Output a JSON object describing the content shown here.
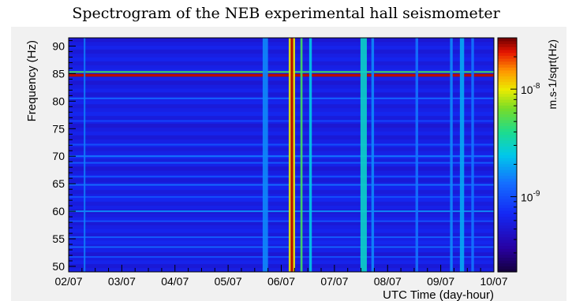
{
  "title": "Spectrogram of the NEB experimental hall seismometer",
  "chart_data": {
    "type": "heatmap",
    "title": "Spectrogram of the NEB experimental hall seismometer",
    "xlabel": "UTC Time (day-hour)",
    "ylabel": "Frequency (Hz)",
    "colorbar_label": "m.s-1/sqrt(Hz)",
    "x_ticks": [
      "02/07",
      "03/07",
      "04/07",
      "05/07",
      "06/07",
      "07/07",
      "08/07",
      "09/07",
      "10/07"
    ],
    "xlim_days": [
      2,
      10
    ],
    "y_ticks": [
      50,
      55,
      60,
      65,
      70,
      75,
      80,
      85,
      90
    ],
    "ylim": [
      49,
      91.5
    ],
    "colorbar_ticks": [
      {
        "base": "10",
        "exp": "-8",
        "value": 1e-08
      },
      {
        "base": "10",
        "exp": "-9",
        "value": 1e-09
      }
    ],
    "colorbar_range": [
      2e-10,
      3e-08
    ],
    "colorbar_scale": "log",
    "background_level": 6e-10,
    "horizontal_lines": [
      {
        "freq": 84.7,
        "level": 2.5e-08
      },
      {
        "freq": 85.3,
        "level": 5e-09
      },
      {
        "freq": 80.5,
        "level": 1.2e-09
      },
      {
        "freq": 76.4,
        "level": 9e-10
      },
      {
        "freq": 72.1,
        "level": 1e-09
      },
      {
        "freq": 70.0,
        "level": 1.4e-09
      },
      {
        "freq": 68.8,
        "level": 1.1e-09
      },
      {
        "freq": 66.3,
        "level": 1e-09
      },
      {
        "freq": 64.8,
        "level": 1.3e-09
      },
      {
        "freq": 62.6,
        "level": 1e-09
      },
      {
        "freq": 60.0,
        "level": 1.6e-09
      },
      {
        "freq": 58.2,
        "level": 1e-09
      },
      {
        "freq": 55.3,
        "level": 1.1e-09
      },
      {
        "freq": 53.5,
        "level": 1.2e-09
      },
      {
        "freq": 51.7,
        "level": 1e-09
      }
    ],
    "vertical_bands": [
      {
        "day": 2.3,
        "width": 0.03,
        "level": 1.5e-09
      },
      {
        "day": 5.7,
        "width": 0.1,
        "level": 1.6e-09
      },
      {
        "day": 6.2,
        "width": 0.12,
        "level": 1e-08
      },
      {
        "day": 6.38,
        "width": 0.04,
        "level": 5e-09
      },
      {
        "day": 6.55,
        "width": 0.05,
        "level": 2.5e-09
      },
      {
        "day": 7.55,
        "width": 0.12,
        "level": 3e-09
      },
      {
        "day": 7.72,
        "width": 0.05,
        "level": 1.6e-09
      },
      {
        "day": 8.55,
        "width": 0.05,
        "level": 1.4e-09
      },
      {
        "day": 9.2,
        "width": 0.05,
        "level": 1.6e-09
      },
      {
        "day": 9.4,
        "width": 0.08,
        "level": 2e-09
      },
      {
        "day": 9.6,
        "width": 0.05,
        "level": 1.4e-09
      }
    ]
  }
}
